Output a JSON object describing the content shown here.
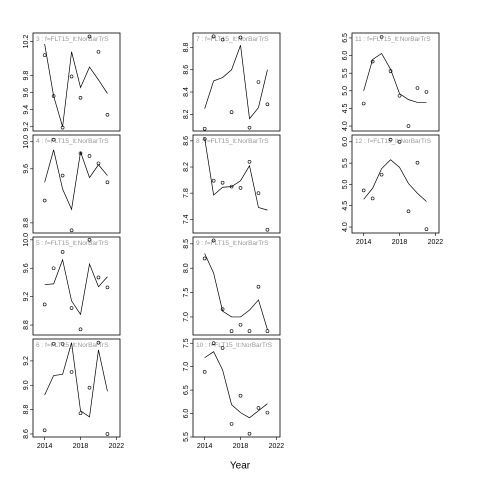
{
  "chart_data": {
    "type": "line",
    "xlabel": "Year",
    "x": [
      2014,
      2015,
      2016,
      2017,
      2018,
      2019,
      2020,
      2021
    ],
    "xlim": [
      2012.7,
      2022.4
    ],
    "xticks": [
      2014,
      2018,
      2022
    ],
    "panels": [
      {
        "label": "3 : f=FLT15_lt:NorBarTrS",
        "ylim": [
          9.15,
          10.3
        ],
        "yticks": [
          9.2,
          9.4,
          9.6,
          9.8,
          10.2
        ],
        "points": [
          10.04,
          9.56,
          9.19,
          9.79,
          9.54,
          10.26,
          10.08,
          9.34
        ],
        "line": [
          10.17,
          9.56,
          9.2,
          10.08,
          9.66,
          9.9,
          9.75,
          9.59
        ]
      },
      {
        "label": "4 : f=FLT15_lt:NorBarTrS",
        "ylim": [
          8.65,
          10.1
        ],
        "yticks": [
          8.8,
          9.6,
          {
            "value": 10,
            "label": "10.0"
          }
        ],
        "points": [
          9.13,
          10.03,
          9.5,
          8.69,
          9.83,
          9.79,
          9.68,
          9.4
        ],
        "line": [
          9.4,
          9.88,
          9.3,
          9.0,
          9.85,
          9.47,
          9.66,
          9.5
        ]
      },
      {
        "label": "5 : f=FLT15_lt:NorBarTrS",
        "ylim": [
          8.66,
          10.04
        ],
        "yticks": [
          8.8,
          9.2,
          9.6,
          {
            "value": 10,
            "label": "10.0"
          }
        ],
        "points": [
          9.09,
          9.6,
          9.83,
          9.04,
          8.74,
          10.0,
          9.47,
          9.33
        ],
        "line": [
          9.37,
          9.38,
          9.72,
          9.14,
          8.95,
          9.66,
          9.34,
          9.48
        ]
      },
      {
        "label": "6 : f=FLT15_lt:NorBarTrS",
        "ylim": [
          8.575,
          9.38
        ],
        "yticks": [
          8.6,
          8.8,
          {
            "value": 9,
            "label": "9.0"
          },
          9.2
        ],
        "points": [
          8.63,
          9.34,
          9.34,
          9.11,
          8.77,
          8.98,
          9.35,
          8.6
        ],
        "line": [
          8.92,
          9.08,
          9.09,
          9.35,
          8.79,
          8.74,
          9.29,
          8.95
        ]
      },
      {
        "label": "7 : f=FLT15_lt:NorBarTrS",
        "ylim": [
          8.05,
          8.93
        ],
        "yticks": [
          8.2,
          8.4,
          8.6,
          8.8
        ],
        "points": [
          8.07,
          8.9,
          8.87,
          8.22,
          8.89,
          8.08,
          8.49,
          8.29
        ],
        "line": [
          8.25,
          8.5,
          8.53,
          8.6,
          8.82,
          8.16,
          8.26,
          8.6
        ]
      },
      {
        "label": "8 : f=FLT15_lt:NorBarTrS",
        "ylim": [
          7.19,
          8.69
        ],
        "yticks": [
          7.4,
          7.8,
          8.2,
          8.6
        ],
        "points": [
          8.63,
          7.99,
          7.96,
          7.9,
          7.88,
          8.28,
          7.8,
          7.24
        ],
        "line": [
          8.64,
          7.77,
          7.89,
          7.9,
          7.99,
          8.22,
          7.58,
          7.54
        ]
      },
      {
        "label": "9 : f=FLT15_lt:NorBarTrS",
        "ylim": [
          6.63,
          8.64
        ],
        "yticks": [
          {
            "value": 7,
            "label": "7.0"
          },
          7.5,
          {
            "value": 8,
            "label": "8.0"
          },
          8.5
        ],
        "points": [
          8.2,
          8.57,
          7.16,
          6.71,
          6.84,
          6.71,
          7.62,
          6.71
        ],
        "line": [
          8.3,
          7.9,
          7.12,
          7.0,
          7.0,
          7.14,
          7.35,
          6.74
        ]
      },
      {
        "label": "10 : f=FLT15_lt:NorBarTrS",
        "ylim": [
          5.5,
          7.59
        ],
        "yticks": [
          5.5,
          {
            "value": 6,
            "label": "6.0"
          },
          6.5,
          {
            "value": 7,
            "label": "7.0"
          },
          7.5
        ],
        "points": [
          6.89,
          7.5,
          7.4,
          5.78,
          6.38,
          5.57,
          6.12,
          6.02
        ],
        "line": [
          7.19,
          7.32,
          6.93,
          6.19,
          6.02,
          5.91,
          6.06,
          6.21
        ]
      },
      {
        "label": "11 : f=FLT15_lt:NorBarTrS",
        "ylim": [
          3.86,
          6.64
        ],
        "yticks": [
          {
            "value": 4,
            "label": "4.0"
          },
          4.5,
          {
            "value": 5,
            "label": "5.0"
          },
          5.5,
          {
            "value": 6,
            "label": "6.0"
          },
          6.5
        ],
        "points": [
          4.64,
          5.83,
          6.53,
          5.56,
          4.86,
          4.0,
          5.08,
          4.97
        ],
        "line": [
          5.0,
          5.89,
          6.06,
          5.61,
          4.92,
          4.75,
          4.67,
          4.67
        ]
      },
      {
        "label": "12 : f=FLT15_lt:NorBarTrS",
        "ylim": [
          3.86,
          6.16
        ],
        "yticks": [
          {
            "value": 4,
            "label": "4.0"
          },
          4.5,
          {
            "value": 5,
            "label": "5.0"
          },
          5.5,
          {
            "value": 6,
            "label": "6.0"
          }
        ],
        "points": [
          4.86,
          4.67,
          5.23,
          6.05,
          6.0,
          4.37,
          5.51,
          3.95
        ],
        "line": [
          4.65,
          4.91,
          5.37,
          5.58,
          5.4,
          5.02,
          4.79,
          4.6
        ]
      }
    ]
  }
}
